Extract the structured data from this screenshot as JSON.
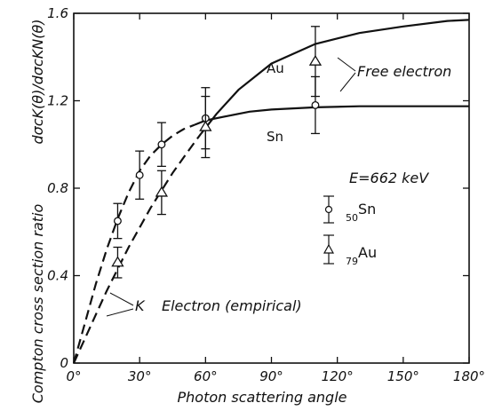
{
  "chart_data": {
    "type": "scatter",
    "xlabel": "Photon scattering angle",
    "ylabel_prefix": "Compton cross section ratio",
    "ylabel_ratio": "dσcK(θ)/dσcKN(θ)",
    "xlim": [
      0,
      180
    ],
    "ylim": [
      0,
      1.6
    ],
    "x_ticks": [
      0,
      30,
      60,
      90,
      120,
      150,
      180
    ],
    "x_tick_labels": [
      "0°",
      "30°",
      "60°",
      "90°",
      "120°",
      "150°",
      "180°"
    ],
    "y_ticks": [
      0,
      0.4,
      0.8,
      1.2,
      1.6
    ],
    "y_tick_labels": [
      "0",
      "0.4",
      "0.8",
      "1.2",
      "1.6"
    ],
    "grid": false,
    "energy_label": "E=662 keV",
    "series": [
      {
        "name": "50Sn",
        "marker": "circle",
        "points": [
          {
            "x": 20,
            "y": 0.65,
            "err": 0.08
          },
          {
            "x": 30,
            "y": 0.86,
            "err": 0.11
          },
          {
            "x": 40,
            "y": 1.0,
            "err": 0.1
          },
          {
            "x": 60,
            "y": 1.12,
            "err": 0.14
          },
          {
            "x": 110,
            "y": 1.18,
            "err": 0.13
          }
        ]
      },
      {
        "name": "79Au",
        "marker": "triangle",
        "points": [
          {
            "x": 20,
            "y": 0.46,
            "err": 0.07
          },
          {
            "x": 40,
            "y": 0.78,
            "err": 0.1
          },
          {
            "x": 60,
            "y": 1.08,
            "err": 0.14
          },
          {
            "x": 110,
            "y": 1.38,
            "err": 0.16
          }
        ]
      }
    ],
    "curves": [
      {
        "name": "Au",
        "style": "dashed",
        "x": [
          0,
          5,
          10,
          15,
          20,
          25,
          30,
          35,
          40,
          45,
          50,
          55,
          58
        ],
        "y": [
          0,
          0.11,
          0.22,
          0.33,
          0.43,
          0.53,
          0.62,
          0.71,
          0.79,
          0.87,
          0.94,
          1.01,
          1.05
        ]
      },
      {
        "name": "Au",
        "style": "solid",
        "x": [
          58,
          65,
          75,
          90,
          110,
          130,
          150,
          170,
          180
        ],
        "y": [
          1.05,
          1.14,
          1.25,
          1.37,
          1.46,
          1.51,
          1.54,
          1.565,
          1.57
        ]
      },
      {
        "name": "Sn",
        "style": "dashed",
        "x": [
          0,
          5,
          10,
          15,
          20,
          25,
          30,
          35,
          40,
          45,
          50,
          55
        ],
        "y": [
          0,
          0.18,
          0.36,
          0.52,
          0.66,
          0.78,
          0.88,
          0.95,
          1.0,
          1.04,
          1.07,
          1.09
        ]
      },
      {
        "name": "Sn",
        "style": "solid",
        "x": [
          55,
          60,
          70,
          80,
          90,
          110,
          130,
          150,
          180
        ],
        "y": [
          1.09,
          1.11,
          1.13,
          1.15,
          1.16,
          1.17,
          1.175,
          1.175,
          1.175
        ]
      }
    ],
    "annotations": {
      "au": "Au",
      "sn": "Sn",
      "free_electron": "Free electron",
      "k_letter": "K",
      "k_electron": "Electron (empirical)"
    }
  }
}
